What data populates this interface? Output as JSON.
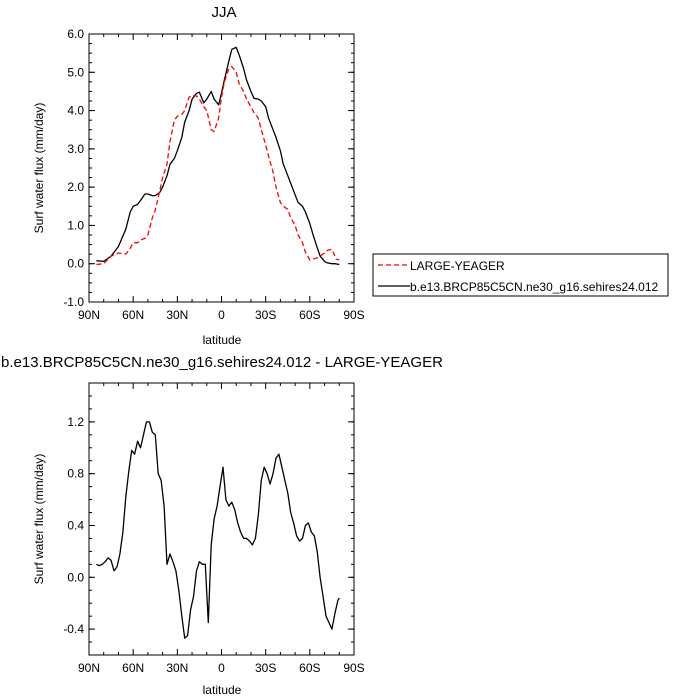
{
  "chart_data": [
    {
      "type": "line",
      "title": "JJA",
      "xlabel": "latitude",
      "ylabel": "Surf water flux (mm/day)",
      "xlim": [
        90,
        -90
      ],
      "ylim": [
        -1.0,
        6.0
      ],
      "x_ticks": [
        90,
        60,
        30,
        0,
        -30,
        -60,
        -90
      ],
      "x_tick_labels": [
        "90N",
        "60N",
        "30N",
        "0",
        "30S",
        "60S",
        "90S"
      ],
      "y_ticks": [
        -1.0,
        0.0,
        1.0,
        2.0,
        3.0,
        4.0,
        5.0,
        6.0
      ],
      "y_tick_labels": [
        "-1.0",
        "0.0",
        "1.0",
        "2.0",
        "3.0",
        "4.0",
        "5.0",
        "6.0"
      ],
      "legend": "right",
      "series": [
        {
          "name": "b.e13.BRCP85C5CN.ne30_g16.sehires24.012",
          "color": "#000000",
          "dash": "solid",
          "x": [
            85,
            80,
            75,
            70,
            65,
            62,
            60,
            57,
            55,
            52,
            50,
            47,
            45,
            42,
            40,
            37,
            35,
            32,
            30,
            27,
            25,
            22,
            20,
            17,
            15,
            12,
            10,
            7,
            5,
            2,
            0,
            -2,
            -5,
            -7,
            -10,
            -12,
            -15,
            -17,
            -20,
            -22,
            -25,
            -27,
            -30,
            -32,
            -35,
            -37,
            -40,
            -42,
            -45,
            -47,
            -50,
            -52,
            -55,
            -57,
            -60,
            -62,
            -65,
            -67,
            -70,
            -72,
            -75,
            -77,
            -80
          ],
          "y": [
            0.08,
            0.06,
            0.2,
            0.45,
            0.9,
            1.35,
            1.5,
            1.55,
            1.65,
            1.82,
            1.82,
            1.78,
            1.78,
            1.86,
            2.0,
            2.3,
            2.6,
            2.75,
            2.95,
            3.3,
            3.7,
            4.0,
            4.3,
            4.45,
            4.48,
            4.2,
            4.3,
            4.5,
            4.3,
            4.15,
            4.45,
            4.8,
            5.3,
            5.6,
            5.65,
            5.45,
            5.1,
            4.8,
            4.5,
            4.32,
            4.3,
            4.25,
            4.1,
            3.8,
            3.5,
            3.3,
            2.95,
            2.6,
            2.3,
            2.1,
            1.8,
            1.6,
            1.5,
            1.35,
            1.05,
            0.78,
            0.42,
            0.2,
            0.06,
            0.02,
            0.0,
            0.0,
            -0.02
          ]
        },
        {
          "name": "LARGE-YEAGER",
          "color": "#ff0000",
          "dash": "dashed",
          "x": [
            85,
            80,
            75,
            70,
            65,
            62,
            60,
            57,
            55,
            52,
            50,
            47,
            45,
            42,
            40,
            37,
            35,
            32,
            30,
            27,
            25,
            22,
            20,
            17,
            15,
            12,
            10,
            7,
            5,
            2,
            0,
            -2,
            -5,
            -7,
            -10,
            -12,
            -15,
            -17,
            -20,
            -22,
            -25,
            -27,
            -30,
            -32,
            -35,
            -37,
            -40,
            -42,
            -45,
            -47,
            -50,
            -52,
            -55,
            -57,
            -60,
            -62,
            -65,
            -67,
            -70,
            -72,
            -75,
            -77,
            -78,
            -80
          ],
          "y": [
            -0.02,
            0.0,
            0.2,
            0.28,
            0.25,
            0.4,
            0.55,
            0.55,
            0.62,
            0.66,
            0.75,
            1.2,
            1.4,
            1.9,
            2.25,
            2.6,
            3.2,
            3.75,
            3.85,
            3.9,
            4.0,
            4.35,
            4.4,
            4.38,
            4.3,
            4.1,
            4.0,
            3.5,
            3.45,
            3.8,
            4.35,
            4.75,
            5.1,
            5.15,
            5.0,
            4.7,
            4.5,
            4.3,
            4.1,
            3.95,
            3.8,
            3.5,
            3.1,
            2.8,
            2.4,
            2.0,
            1.6,
            1.5,
            1.42,
            1.2,
            1.0,
            0.75,
            0.55,
            0.3,
            0.1,
            0.12,
            0.15,
            0.2,
            0.28,
            0.35,
            0.38,
            0.2,
            0.12,
            0.1
          ]
        }
      ]
    },
    {
      "type": "line",
      "title": "b.e13.BRCP85C5CN.ne30_g16.sehires24.012 - LARGE-YEAGER",
      "xlabel": "latitude",
      "ylabel": "Surf water flux (mm/day)",
      "xlim": [
        90,
        -90
      ],
      "ylim": [
        -0.6,
        1.5
      ],
      "x_ticks": [
        90,
        60,
        30,
        0,
        -30,
        -60,
        -90
      ],
      "x_tick_labels": [
        "90N",
        "60N",
        "30N",
        "0",
        "30S",
        "60S",
        "90S"
      ],
      "y_ticks": [
        -0.4,
        0.0,
        0.4,
        0.8,
        1.2
      ],
      "y_tick_labels": [
        "-0.4",
        "0.0",
        "0.4",
        "0.8",
        "1.2"
      ],
      "series": [
        {
          "color": "#000000",
          "dash": "solid",
          "x": [
            85,
            83,
            81,
            79,
            77,
            75,
            73,
            71,
            69,
            67,
            65,
            63,
            61,
            59,
            57,
            55,
            53,
            51,
            49,
            47,
            45,
            43,
            41,
            39,
            37,
            35,
            33,
            31,
            29,
            27,
            25,
            23,
            21,
            19,
            17,
            15,
            13,
            11,
            9,
            7,
            5,
            3,
            1,
            -1,
            -3,
            -5,
            -7,
            -9,
            -11,
            -13,
            -15,
            -17,
            -19,
            -21,
            -23,
            -25,
            -27,
            -29,
            -31,
            -33,
            -35,
            -37,
            -39,
            -41,
            -43,
            -45,
            -47,
            -49,
            -51,
            -53,
            -55,
            -57,
            -59,
            -61,
            -63,
            -65,
            -67,
            -69,
            -71,
            -73,
            -75,
            -77,
            -79,
            -80
          ],
          "y": [
            0.1,
            0.09,
            0.1,
            0.12,
            0.15,
            0.13,
            0.05,
            0.08,
            0.18,
            0.35,
            0.62,
            0.82,
            0.98,
            0.95,
            1.05,
            1.0,
            1.1,
            1.2,
            1.2,
            1.12,
            1.1,
            0.8,
            0.75,
            0.55,
            0.1,
            0.18,
            0.12,
            0.05,
            -0.1,
            -0.3,
            -0.47,
            -0.45,
            -0.25,
            -0.15,
            0.05,
            0.12,
            0.1,
            0.1,
            -0.35,
            0.25,
            0.45,
            0.55,
            0.7,
            0.85,
            0.6,
            0.55,
            0.58,
            0.52,
            0.42,
            0.35,
            0.3,
            0.3,
            0.28,
            0.25,
            0.3,
            0.48,
            0.75,
            0.85,
            0.8,
            0.72,
            0.8,
            0.92,
            0.95,
            0.85,
            0.75,
            0.65,
            0.5,
            0.42,
            0.32,
            0.28,
            0.3,
            0.4,
            0.42,
            0.35,
            0.32,
            0.2,
            0.0,
            -0.15,
            -0.3,
            -0.35,
            -0.4,
            -0.28,
            -0.18,
            -0.16
          ]
        }
      ]
    }
  ]
}
